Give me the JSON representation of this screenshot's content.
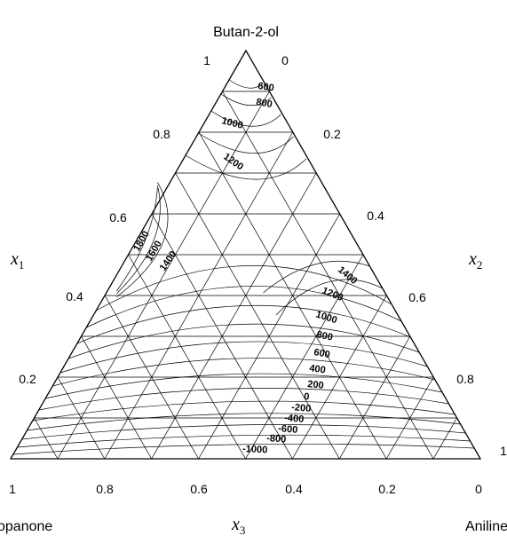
{
  "vertices": {
    "top": "Butan-2-ol",
    "bottom_left": "opanone",
    "bottom_right": "Aniline"
  },
  "axes": {
    "x1": "x",
    "x1_sub": "1",
    "x2": "x",
    "x2_sub": "2",
    "x3": "x",
    "x3_sub": "3"
  },
  "ticks": {
    "left": [
      "1",
      "0.8",
      "0.6",
      "0.4",
      "0.2"
    ],
    "right": [
      "0",
      "0.2",
      "0.4",
      "0.6",
      "0.8",
      "1"
    ],
    "bottom": [
      "1",
      "0.8",
      "0.6",
      "0.4",
      "0.2",
      "0"
    ]
  },
  "contour_labels_center": [
    "600",
    "800",
    "1000",
    "1200"
  ],
  "contour_labels_left": [
    "1800",
    "1600",
    "1400"
  ],
  "contour_labels_right": [
    "1400",
    "1200",
    "1000",
    "800",
    "600",
    "400",
    "200",
    "0",
    "-200",
    "-400",
    "-600",
    "-800",
    "-1000"
  ],
  "grid_divisions": 10
}
